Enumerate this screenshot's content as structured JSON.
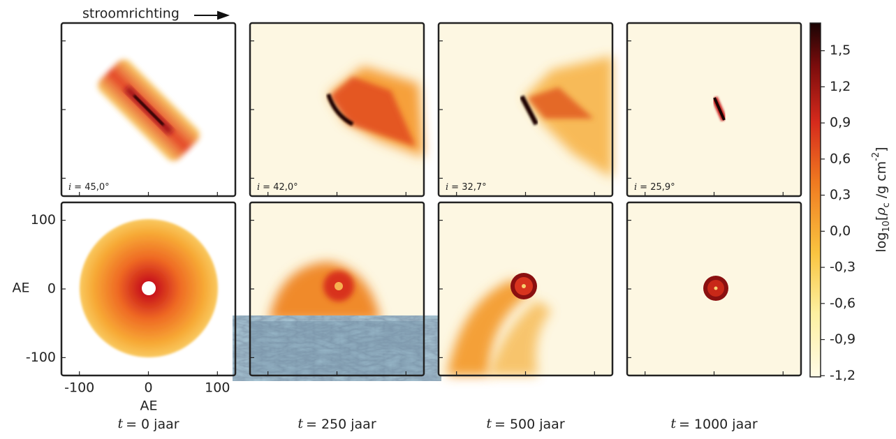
{
  "header": {
    "flow_label": "stroomrichting"
  },
  "axes": {
    "xlim": [
      -126,
      126
    ],
    "ylim": [
      -126,
      126
    ],
    "xticks": [
      -100,
      0,
      100
    ],
    "yticks": [
      -100,
      0,
      100
    ],
    "xlabel": "AE",
    "ylabel": "AE"
  },
  "inclinations": [
    {
      "symbol": "i",
      "text": "= 45,0°"
    },
    {
      "symbol": "i",
      "text": "= 42,0°"
    },
    {
      "symbol": "i",
      "text": "= 32,7°"
    },
    {
      "symbol": "i",
      "text": "= 25,9°"
    }
  ],
  "times": [
    {
      "symbol": "t",
      "text": "= 0 jaar"
    },
    {
      "symbol": "t",
      "text": "= 250 jaar"
    },
    {
      "symbol": "t",
      "text": "= 500 jaar"
    },
    {
      "symbol": "t",
      "text": "= 1000 jaar"
    }
  ],
  "colorbar": {
    "lim": [
      -1.21,
      1.73
    ],
    "ticks": [
      {
        "value": 1.5,
        "label": "1,5"
      },
      {
        "value": 1.2,
        "label": "1,2"
      },
      {
        "value": 0.9,
        "label": "0,9"
      },
      {
        "value": 0.6,
        "label": "0,6"
      },
      {
        "value": 0.3,
        "label": "0,3"
      },
      {
        "value": 0.0,
        "label": "0,0"
      },
      {
        "value": -0.3,
        "label": "-0,3"
      },
      {
        "value": -0.6,
        "label": "-0,6"
      },
      {
        "value": -0.9,
        "label": "-0,9"
      },
      {
        "value": -1.2,
        "label": "-1,2"
      }
    ],
    "label_parts": [
      "log",
      "10",
      "[",
      "ρ",
      "c",
      " /g cm",
      "-2",
      "]"
    ]
  }
}
